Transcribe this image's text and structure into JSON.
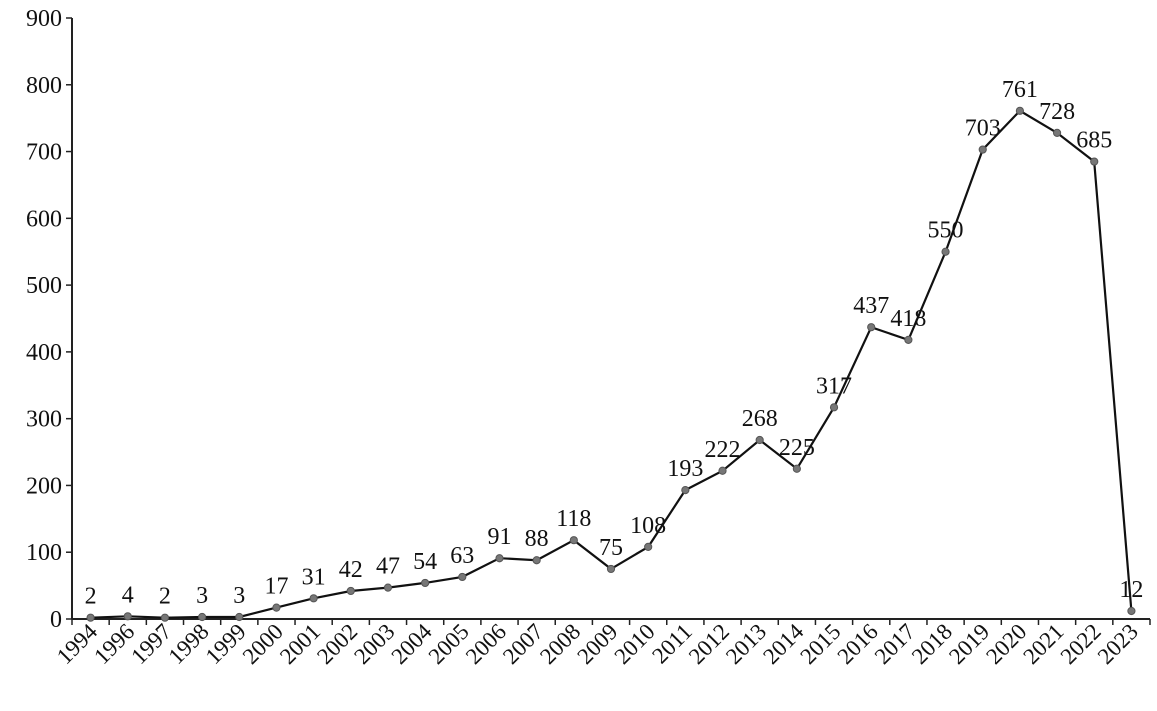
{
  "chart_data": {
    "type": "line",
    "title": "",
    "xlabel": "",
    "ylabel": "",
    "ylim": [
      0,
      900
    ],
    "yticks": [
      0,
      100,
      200,
      300,
      400,
      500,
      600,
      700,
      800,
      900
    ],
    "grid": false,
    "legend": "none",
    "categories": [
      "1994",
      "1996",
      "1997",
      "1998",
      "1999",
      "2000",
      "2001",
      "2002",
      "2003",
      "2004",
      "2005",
      "2006",
      "2007",
      "2008",
      "2009",
      "2010",
      "2011",
      "2012",
      "2013",
      "2014",
      "2015",
      "2016",
      "2017",
      "2018",
      "2019",
      "2020",
      "2021",
      "2022",
      "2023"
    ],
    "series": [
      {
        "values": [
          2,
          4,
          2,
          3,
          3,
          17,
          31,
          42,
          47,
          54,
          63,
          91,
          88,
          118,
          75,
          108,
          193,
          222,
          268,
          225,
          317,
          437,
          418,
          550,
          703,
          761,
          728,
          685,
          12
        ],
        "labels": [
          "2",
          "4",
          "2",
          "3",
          "3",
          "17",
          "31",
          "42",
          "47",
          "54",
          "63",
          "91",
          "88",
          "118",
          "75",
          "108",
          "193",
          "222",
          "268",
          "225",
          "317",
          "437",
          "418",
          "550",
          "703",
          "761",
          "728",
          "685",
          "12"
        ],
        "color": "#111111",
        "marker_color": "#777777"
      }
    ]
  }
}
